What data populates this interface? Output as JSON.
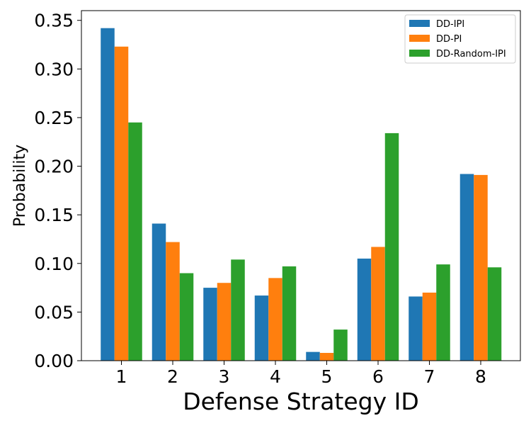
{
  "chart_data": {
    "type": "bar",
    "title": "",
    "xlabel": "Defense Strategy ID",
    "ylabel": "Probability",
    "categories": [
      "1",
      "2",
      "3",
      "4",
      "5",
      "6",
      "7",
      "8"
    ],
    "series": [
      {
        "name": "DD-IPI",
        "color": "#1f77b4",
        "values": [
          0.342,
          0.141,
          0.075,
          0.067,
          0.009,
          0.105,
          0.066,
          0.192
        ]
      },
      {
        "name": "DD-PI",
        "color": "#ff7f0e",
        "values": [
          0.323,
          0.122,
          0.08,
          0.085,
          0.008,
          0.117,
          0.07,
          0.191
        ]
      },
      {
        "name": "DD-Random-IPI",
        "color": "#2ca02c",
        "values": [
          0.245,
          0.09,
          0.104,
          0.097,
          0.032,
          0.234,
          0.099,
          0.096
        ]
      }
    ],
    "ylim": [
      0,
      0.36
    ],
    "yticks": [
      "0.00",
      "0.05",
      "0.10",
      "0.15",
      "0.20",
      "0.25",
      "0.30",
      "0.35"
    ],
    "grid": false,
    "legend_position": "top-right"
  }
}
